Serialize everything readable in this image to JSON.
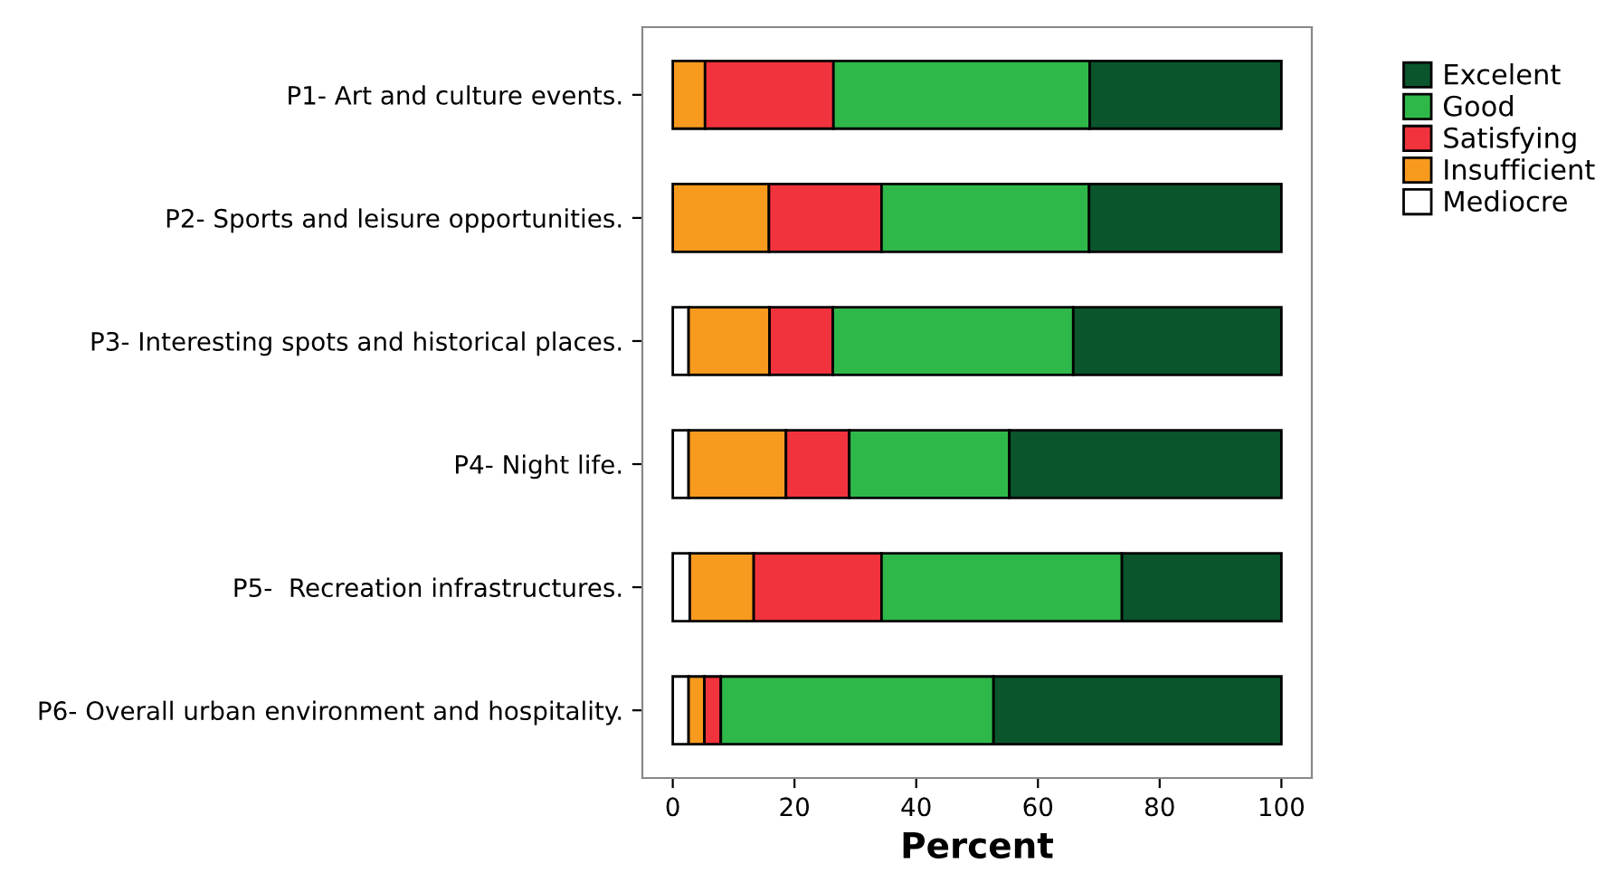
{
  "chart_data": {
    "type": "bar",
    "orientation": "horizontal",
    "stacked": true,
    "xlabel": "Percent",
    "categories": [
      "P1- Art and culture events.",
      "P2- Sports and leisure opportunities.",
      "P3- Interesting spots and historical places.",
      "P4- Night life.",
      "P5-  Recreation infrastructures.",
      "P6- Overall urban environment and hospitality."
    ],
    "series": [
      {
        "name": "Mediocre",
        "color": "#ffffff",
        "values": [
          0,
          0,
          2.6,
          2.6,
          2.8,
          2.6
        ]
      },
      {
        "name": "Insufficient",
        "color": "#f89a1e",
        "values": [
          5.3,
          15.8,
          13.3,
          16.0,
          10.5,
          2.6
        ]
      },
      {
        "name": "Satisfying",
        "color": "#f0333c",
        "values": [
          21.1,
          18.5,
          10.4,
          10.4,
          21.0,
          2.7
        ]
      },
      {
        "name": "Good",
        "color": "#2fb84a",
        "values": [
          42.1,
          34.1,
          39.5,
          26.3,
          39.5,
          44.8
        ]
      },
      {
        "name": "Excelent",
        "color": "#0a552c",
        "values": [
          31.5,
          31.6,
          34.2,
          44.7,
          26.2,
          47.3
        ]
      }
    ],
    "xlim": [
      -5,
      105
    ],
    "xticks": [
      0,
      20,
      40,
      60,
      80,
      100
    ],
    "grid": false,
    "legend": "right"
  }
}
